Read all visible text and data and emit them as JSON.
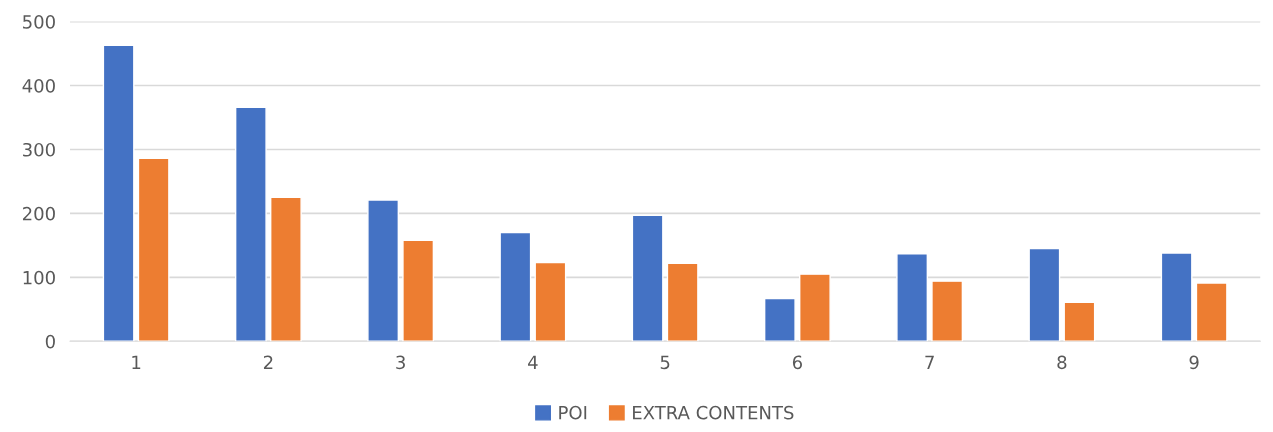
{
  "chart_data": {
    "type": "bar",
    "categories": [
      "1",
      "2",
      "3",
      "4",
      "5",
      "6",
      "7",
      "8",
      "9"
    ],
    "series": [
      {
        "name": "POI",
        "color": "#4472c4",
        "values": [
          463,
          366,
          221,
          170,
          197,
          67,
          137,
          145,
          138
        ]
      },
      {
        "name": "EXTRA CONTENTS",
        "color": "#ed7d31",
        "values": [
          286,
          225,
          158,
          123,
          122,
          105,
          94,
          61,
          91
        ]
      }
    ],
    "ylim": [
      0,
      500
    ],
    "yticks": [
      0,
      100,
      200,
      300,
      400,
      500
    ],
    "grid": "y",
    "legend": "bottom"
  }
}
